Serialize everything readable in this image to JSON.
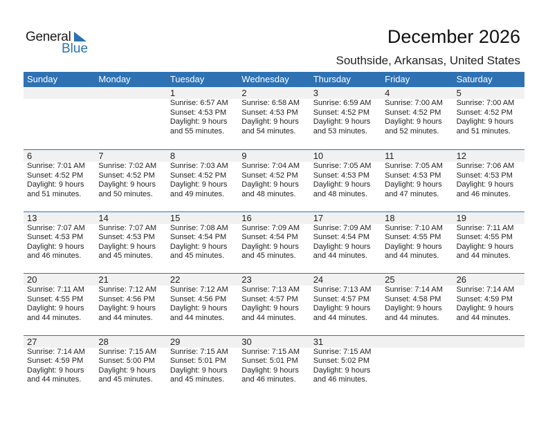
{
  "logo": {
    "general": "General",
    "blue": "Blue"
  },
  "title": "December 2026",
  "subtitle": "Southside, Arkansas, United States",
  "colors": {
    "accent": "#2e72b4",
    "band": "#f1f1f1"
  },
  "weekdays": [
    "Sunday",
    "Monday",
    "Tuesday",
    "Wednesday",
    "Thursday",
    "Friday",
    "Saturday"
  ],
  "weeks": [
    [
      null,
      null,
      {
        "day": "1",
        "sunrise": "Sunrise: 6:57 AM",
        "sunset": "Sunset: 4:53 PM",
        "daylight": "Daylight: 9 hours",
        "minutes": "and 55 minutes."
      },
      {
        "day": "2",
        "sunrise": "Sunrise: 6:58 AM",
        "sunset": "Sunset: 4:53 PM",
        "daylight": "Daylight: 9 hours",
        "minutes": "and 54 minutes."
      },
      {
        "day": "3",
        "sunrise": "Sunrise: 6:59 AM",
        "sunset": "Sunset: 4:52 PM",
        "daylight": "Daylight: 9 hours",
        "minutes": "and 53 minutes."
      },
      {
        "day": "4",
        "sunrise": "Sunrise: 7:00 AM",
        "sunset": "Sunset: 4:52 PM",
        "daylight": "Daylight: 9 hours",
        "minutes": "and 52 minutes."
      },
      {
        "day": "5",
        "sunrise": "Sunrise: 7:00 AM",
        "sunset": "Sunset: 4:52 PM",
        "daylight": "Daylight: 9 hours",
        "minutes": "and 51 minutes."
      }
    ],
    [
      {
        "day": "6",
        "sunrise": "Sunrise: 7:01 AM",
        "sunset": "Sunset: 4:52 PM",
        "daylight": "Daylight: 9 hours",
        "minutes": "and 51 minutes."
      },
      {
        "day": "7",
        "sunrise": "Sunrise: 7:02 AM",
        "sunset": "Sunset: 4:52 PM",
        "daylight": "Daylight: 9 hours",
        "minutes": "and 50 minutes."
      },
      {
        "day": "8",
        "sunrise": "Sunrise: 7:03 AM",
        "sunset": "Sunset: 4:52 PM",
        "daylight": "Daylight: 9 hours",
        "minutes": "and 49 minutes."
      },
      {
        "day": "9",
        "sunrise": "Sunrise: 7:04 AM",
        "sunset": "Sunset: 4:52 PM",
        "daylight": "Daylight: 9 hours",
        "minutes": "and 48 minutes."
      },
      {
        "day": "10",
        "sunrise": "Sunrise: 7:05 AM",
        "sunset": "Sunset: 4:53 PM",
        "daylight": "Daylight: 9 hours",
        "minutes": "and 48 minutes."
      },
      {
        "day": "11",
        "sunrise": "Sunrise: 7:05 AM",
        "sunset": "Sunset: 4:53 PM",
        "daylight": "Daylight: 9 hours",
        "minutes": "and 47 minutes."
      },
      {
        "day": "12",
        "sunrise": "Sunrise: 7:06 AM",
        "sunset": "Sunset: 4:53 PM",
        "daylight": "Daylight: 9 hours",
        "minutes": "and 46 minutes."
      }
    ],
    [
      {
        "day": "13",
        "sunrise": "Sunrise: 7:07 AM",
        "sunset": "Sunset: 4:53 PM",
        "daylight": "Daylight: 9 hours",
        "minutes": "and 46 minutes."
      },
      {
        "day": "14",
        "sunrise": "Sunrise: 7:07 AM",
        "sunset": "Sunset: 4:53 PM",
        "daylight": "Daylight: 9 hours",
        "minutes": "and 45 minutes."
      },
      {
        "day": "15",
        "sunrise": "Sunrise: 7:08 AM",
        "sunset": "Sunset: 4:54 PM",
        "daylight": "Daylight: 9 hours",
        "minutes": "and 45 minutes."
      },
      {
        "day": "16",
        "sunrise": "Sunrise: 7:09 AM",
        "sunset": "Sunset: 4:54 PM",
        "daylight": "Daylight: 9 hours",
        "minutes": "and 45 minutes."
      },
      {
        "day": "17",
        "sunrise": "Sunrise: 7:09 AM",
        "sunset": "Sunset: 4:54 PM",
        "daylight": "Daylight: 9 hours",
        "minutes": "and 44 minutes."
      },
      {
        "day": "18",
        "sunrise": "Sunrise: 7:10 AM",
        "sunset": "Sunset: 4:55 PM",
        "daylight": "Daylight: 9 hours",
        "minutes": "and 44 minutes."
      },
      {
        "day": "19",
        "sunrise": "Sunrise: 7:11 AM",
        "sunset": "Sunset: 4:55 PM",
        "daylight": "Daylight: 9 hours",
        "minutes": "and 44 minutes."
      }
    ],
    [
      {
        "day": "20",
        "sunrise": "Sunrise: 7:11 AM",
        "sunset": "Sunset: 4:55 PM",
        "daylight": "Daylight: 9 hours",
        "minutes": "and 44 minutes."
      },
      {
        "day": "21",
        "sunrise": "Sunrise: 7:12 AM",
        "sunset": "Sunset: 4:56 PM",
        "daylight": "Daylight: 9 hours",
        "minutes": "and 44 minutes."
      },
      {
        "day": "22",
        "sunrise": "Sunrise: 7:12 AM",
        "sunset": "Sunset: 4:56 PM",
        "daylight": "Daylight: 9 hours",
        "minutes": "and 44 minutes."
      },
      {
        "day": "23",
        "sunrise": "Sunrise: 7:13 AM",
        "sunset": "Sunset: 4:57 PM",
        "daylight": "Daylight: 9 hours",
        "minutes": "and 44 minutes."
      },
      {
        "day": "24",
        "sunrise": "Sunrise: 7:13 AM",
        "sunset": "Sunset: 4:57 PM",
        "daylight": "Daylight: 9 hours",
        "minutes": "and 44 minutes."
      },
      {
        "day": "25",
        "sunrise": "Sunrise: 7:14 AM",
        "sunset": "Sunset: 4:58 PM",
        "daylight": "Daylight: 9 hours",
        "minutes": "and 44 minutes."
      },
      {
        "day": "26",
        "sunrise": "Sunrise: 7:14 AM",
        "sunset": "Sunset: 4:59 PM",
        "daylight": "Daylight: 9 hours",
        "minutes": "and 44 minutes."
      }
    ],
    [
      {
        "day": "27",
        "sunrise": "Sunrise: 7:14 AM",
        "sunset": "Sunset: 4:59 PM",
        "daylight": "Daylight: 9 hours",
        "minutes": "and 44 minutes."
      },
      {
        "day": "28",
        "sunrise": "Sunrise: 7:15 AM",
        "sunset": "Sunset: 5:00 PM",
        "daylight": "Daylight: 9 hours",
        "minutes": "and 45 minutes."
      },
      {
        "day": "29",
        "sunrise": "Sunrise: 7:15 AM",
        "sunset": "Sunset: 5:01 PM",
        "daylight": "Daylight: 9 hours",
        "minutes": "and 45 minutes."
      },
      {
        "day": "30",
        "sunrise": "Sunrise: 7:15 AM",
        "sunset": "Sunset: 5:01 PM",
        "daylight": "Daylight: 9 hours",
        "minutes": "and 46 minutes."
      },
      {
        "day": "31",
        "sunrise": "Sunrise: 7:15 AM",
        "sunset": "Sunset: 5:02 PM",
        "daylight": "Daylight: 9 hours",
        "minutes": "and 46 minutes."
      },
      null,
      null
    ]
  ]
}
